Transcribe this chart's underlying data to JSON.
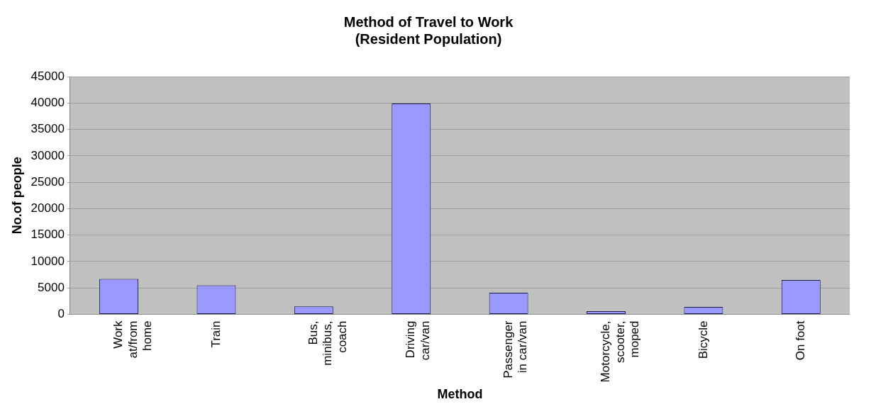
{
  "chart_data": {
    "type": "bar",
    "title": "Method of Travel to Work\n(Resident Population)",
    "xlabel": "Method",
    "ylabel": "No.of people",
    "categories": [
      "Work\nat/from\nhome",
      "Train",
      "Bus,\nminibus,\ncoach",
      "Driving\ncar/van",
      "Passenger\nin car/van",
      "Motorcycle,\nscooter,\nmoped",
      "Bicycle",
      "On foot"
    ],
    "values": [
      6700,
      5500,
      1500,
      39900,
      4100,
      600,
      1400,
      6500
    ],
    "color": "#9999ff",
    "ylim": [
      0,
      45000
    ],
    "yticks": [
      0,
      5000,
      10000,
      15000,
      20000,
      25000,
      30000,
      35000,
      40000,
      45000
    ],
    "grid": "y",
    "legend": false
  }
}
